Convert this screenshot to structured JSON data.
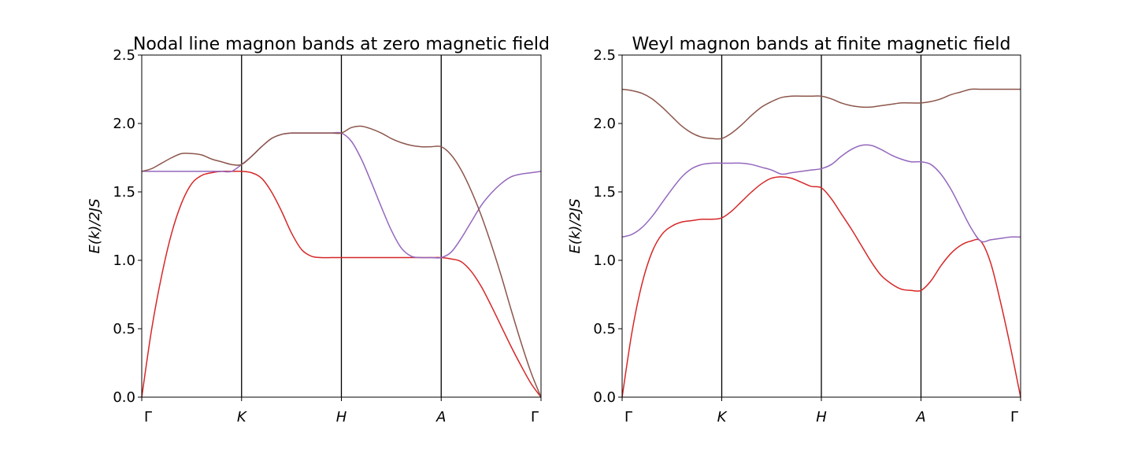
{
  "chart_data": [
    {
      "type": "line",
      "title": "Nodal line magnon bands at zero magnetic field",
      "ylabel": "E(k)/2JS",
      "ylim": [
        0,
        2.5
      ],
      "yticks": [
        "0.0",
        "0.5",
        "1.0",
        "1.5",
        "2.0",
        "2.5"
      ],
      "x_labels": [
        "Γ",
        "K",
        "H",
        "A",
        "Γ"
      ],
      "x_label_italic": [
        false,
        true,
        true,
        true,
        false
      ],
      "x": [
        0,
        0.1,
        0.2,
        0.3,
        0.4,
        0.5,
        0.6,
        0.7,
        0.8,
        0.9,
        1.0,
        1.1,
        1.2,
        1.3,
        1.4,
        1.5,
        1.6,
        1.7,
        1.8,
        1.9,
        2.0,
        2.1,
        2.2,
        2.3,
        2.4,
        2.5,
        2.6,
        2.7,
        2.8,
        2.9,
        3.0,
        3.1,
        3.2,
        3.3,
        3.4,
        3.5,
        3.6,
        3.7,
        3.8,
        3.9,
        4.0
      ],
      "series": [
        {
          "color": "#d62728",
          "values": [
            0.0,
            0.5,
            0.89,
            1.2,
            1.42,
            1.56,
            1.62,
            1.64,
            1.65,
            1.65,
            1.65,
            1.64,
            1.6,
            1.5,
            1.36,
            1.2,
            1.08,
            1.03,
            1.02,
            1.02,
            1.02,
            1.02,
            1.02,
            1.02,
            1.02,
            1.02,
            1.02,
            1.02,
            1.02,
            1.02,
            1.02,
            1.01,
            0.99,
            0.92,
            0.81,
            0.67,
            0.52,
            0.37,
            0.23,
            0.1,
            0.0
          ]
        },
        {
          "color": "#9467bd",
          "values": [
            1.65,
            1.65,
            1.65,
            1.65,
            1.65,
            1.65,
            1.65,
            1.65,
            1.65,
            1.65,
            1.7,
            1.76,
            1.83,
            1.89,
            1.92,
            1.93,
            1.93,
            1.93,
            1.93,
            1.93,
            1.93,
            1.87,
            1.74,
            1.57,
            1.39,
            1.22,
            1.09,
            1.03,
            1.02,
            1.02,
            1.02,
            1.06,
            1.16,
            1.28,
            1.4,
            1.49,
            1.56,
            1.61,
            1.63,
            1.64,
            1.65
          ]
        },
        {
          "color": "#8c564b",
          "values": [
            1.65,
            1.67,
            1.71,
            1.75,
            1.78,
            1.78,
            1.77,
            1.74,
            1.72,
            1.7,
            1.7,
            1.76,
            1.83,
            1.89,
            1.92,
            1.93,
            1.93,
            1.93,
            1.93,
            1.93,
            1.93,
            1.97,
            1.98,
            1.96,
            1.93,
            1.89,
            1.86,
            1.84,
            1.83,
            1.83,
            1.83,
            1.77,
            1.66,
            1.51,
            1.33,
            1.12,
            0.89,
            0.64,
            0.4,
            0.18,
            0.0
          ]
        }
      ]
    },
    {
      "type": "line",
      "title": "Weyl magnon bands at finite magnetic field",
      "ylabel": "E(k)/2JS",
      "ylim": [
        0,
        2.5
      ],
      "yticks": [
        "0.0",
        "0.5",
        "1.0",
        "1.5",
        "2.0",
        "2.5"
      ],
      "x_labels": [
        "Γ",
        "K",
        "H",
        "A",
        "Γ"
      ],
      "x_label_italic": [
        false,
        true,
        true,
        true,
        false
      ],
      "x": [
        0,
        0.1,
        0.2,
        0.3,
        0.4,
        0.5,
        0.6,
        0.7,
        0.8,
        0.9,
        1.0,
        1.1,
        1.2,
        1.3,
        1.4,
        1.5,
        1.6,
        1.7,
        1.8,
        1.9,
        2.0,
        2.1,
        2.2,
        2.3,
        2.4,
        2.5,
        2.6,
        2.7,
        2.8,
        2.9,
        3.0,
        3.1,
        3.2,
        3.3,
        3.4,
        3.5,
        3.6,
        3.7,
        3.8,
        3.9,
        4.0
      ],
      "series": [
        {
          "color": "#d62728",
          "values": [
            0.0,
            0.48,
            0.83,
            1.06,
            1.19,
            1.25,
            1.28,
            1.29,
            1.3,
            1.3,
            1.31,
            1.36,
            1.43,
            1.5,
            1.56,
            1.6,
            1.61,
            1.6,
            1.57,
            1.54,
            1.53,
            1.45,
            1.34,
            1.23,
            1.11,
            0.99,
            0.89,
            0.83,
            0.79,
            0.78,
            0.78,
            0.85,
            0.96,
            1.05,
            1.11,
            1.14,
            1.14,
            0.98,
            0.69,
            0.36,
            0.0
          ]
        },
        {
          "color": "#9467bd",
          "values": [
            1.17,
            1.19,
            1.24,
            1.32,
            1.42,
            1.52,
            1.61,
            1.67,
            1.7,
            1.71,
            1.71,
            1.71,
            1.71,
            1.7,
            1.68,
            1.66,
            1.63,
            1.64,
            1.65,
            1.66,
            1.67,
            1.7,
            1.76,
            1.81,
            1.84,
            1.84,
            1.81,
            1.77,
            1.74,
            1.72,
            1.72,
            1.7,
            1.63,
            1.52,
            1.38,
            1.24,
            1.14,
            1.15,
            1.16,
            1.17,
            1.17
          ]
        },
        {
          "color": "#8c564b",
          "values": [
            2.25,
            2.24,
            2.22,
            2.18,
            2.12,
            2.05,
            1.98,
            1.93,
            1.9,
            1.89,
            1.89,
            1.93,
            1.99,
            2.06,
            2.12,
            2.16,
            2.19,
            2.2,
            2.2,
            2.2,
            2.2,
            2.18,
            2.15,
            2.13,
            2.12,
            2.12,
            2.13,
            2.14,
            2.15,
            2.15,
            2.15,
            2.16,
            2.18,
            2.21,
            2.23,
            2.25,
            2.25,
            2.25,
            2.25,
            2.25,
            2.25
          ]
        }
      ]
    }
  ]
}
